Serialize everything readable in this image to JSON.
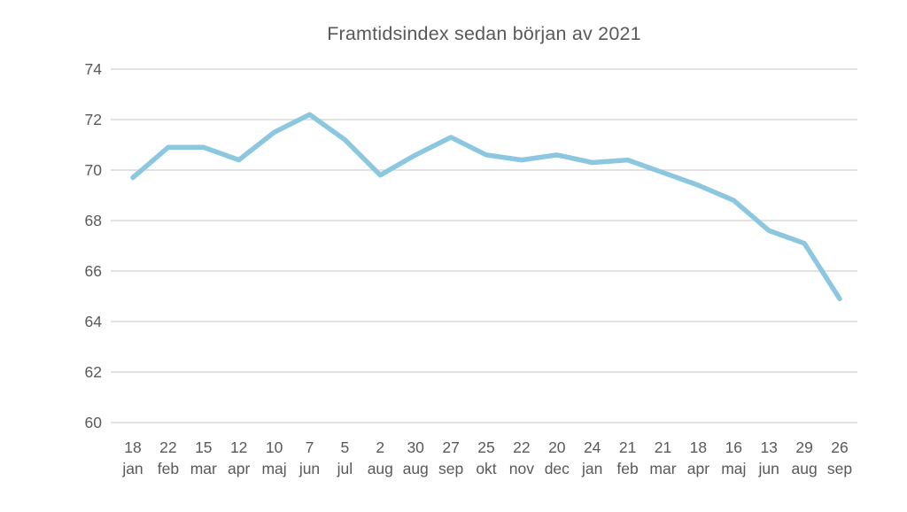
{
  "chart_data": {
    "type": "line",
    "title": "Framtidsindex sedan början av 2021",
    "categories": [
      [
        "18",
        "jan"
      ],
      [
        "22",
        "feb"
      ],
      [
        "15",
        "mar"
      ],
      [
        "12",
        "apr"
      ],
      [
        "10",
        "maj"
      ],
      [
        "7",
        "jun"
      ],
      [
        "5",
        "jul"
      ],
      [
        "2",
        "aug"
      ],
      [
        "30",
        "aug"
      ],
      [
        "27",
        "sep"
      ],
      [
        "25",
        "okt"
      ],
      [
        "22",
        "nov"
      ],
      [
        "20",
        "dec"
      ],
      [
        "24",
        "jan"
      ],
      [
        "21",
        "feb"
      ],
      [
        "21",
        "mar"
      ],
      [
        "18",
        "apr"
      ],
      [
        "16",
        "maj"
      ],
      [
        "13",
        "jun"
      ],
      [
        "29",
        "aug"
      ],
      [
        "26",
        "sep"
      ]
    ],
    "values": [
      69.7,
      70.9,
      70.9,
      70.4,
      71.5,
      72.2,
      71.2,
      69.8,
      70.6,
      71.3,
      70.6,
      70.4,
      70.6,
      70.3,
      70.4,
      69.9,
      69.4,
      68.8,
      67.6,
      67.1,
      64.9
    ],
    "yticks": [
      60,
      62,
      64,
      66,
      68,
      70,
      72,
      74
    ],
    "ylim": [
      60,
      74
    ],
    "xlabel": "",
    "ylabel": "",
    "grid": true,
    "legend": "none",
    "colors": {
      "line": "#8CC7E0",
      "grid": "#D9D9D9",
      "text": "#595959",
      "background": "#FFFFFF"
    }
  }
}
